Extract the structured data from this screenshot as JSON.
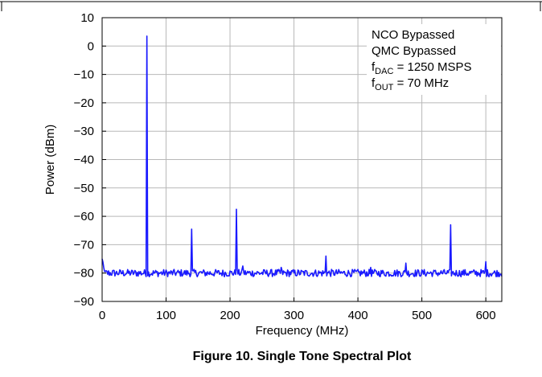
{
  "caption": "Figure 10. Single Tone Spectral Plot",
  "chart_data": {
    "type": "line",
    "title": "",
    "xlabel": "Frequency (MHz)",
    "ylabel": "Power (dBm)",
    "xlim": [
      0,
      625
    ],
    "ylim": [
      -90,
      10
    ],
    "xticks": [
      0,
      100,
      200,
      300,
      400,
      500,
      600
    ],
    "yticks": [
      10,
      0,
      -10,
      -20,
      -30,
      -40,
      -50,
      -60,
      -70,
      -80,
      -90
    ],
    "grid": true,
    "line_color": "#1a1aff",
    "annotation": {
      "lines": [
        {
          "main": "NCO Bypassed",
          "sub": "",
          "rest": ""
        },
        {
          "main": "QMC Bypassed",
          "sub": "",
          "rest": ""
        },
        {
          "main": "f",
          "sub": "DAC",
          "rest": " = 1250 MSPS"
        },
        {
          "main": "f",
          "sub": "OUT",
          "rest": " = 70 MHz"
        }
      ]
    },
    "series": [
      {
        "noise_floor": -80,
        "peaks": [
          {
            "x": 0,
            "y": -75
          },
          {
            "x": 70,
            "y": 3.5
          },
          {
            "x": 140,
            "y": -64.5
          },
          {
            "x": 210,
            "y": -57.5
          },
          {
            "x": 220,
            "y": -77.5
          },
          {
            "x": 280,
            "y": -78
          },
          {
            "x": 350,
            "y": -74
          },
          {
            "x": 420,
            "y": -78
          },
          {
            "x": 475,
            "y": -76.5
          },
          {
            "x": 545,
            "y": -63
          },
          {
            "x": 600,
            "y": -76
          }
        ]
      }
    ]
  }
}
